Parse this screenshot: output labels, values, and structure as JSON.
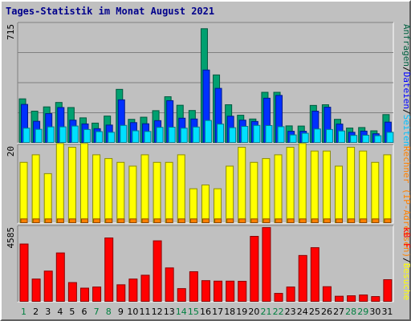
{
  "title": "Tages-Statistik im Monat August 2021",
  "chart_data": [
    {
      "type": "bar",
      "panel": "top",
      "ymax_label": "715",
      "ylim": [
        0,
        715
      ],
      "right_label_parts": [
        {
          "text": "Anfragen",
          "color": "#006040"
        },
        {
          "text": "/",
          "color": "#000000"
        },
        {
          "text": "Dateien",
          "color": "#0000ff"
        },
        {
          "text": "/",
          "color": "#000000"
        },
        {
          "text": "Seiten",
          "color": "#00c0ff"
        }
      ],
      "categories": [
        "1",
        "2",
        "3",
        "4",
        "5",
        "6",
        "7",
        "8",
        "9",
        "10",
        "11",
        "12",
        "13",
        "14",
        "15",
        "16",
        "17",
        "18",
        "19",
        "20",
        "21",
        "22",
        "23",
        "24",
        "25",
        "26",
        "27",
        "28",
        "29",
        "30",
        "31"
      ],
      "series": [
        {
          "name": "Anfragen",
          "color": "#00a070",
          "values": [
            266,
            191,
            217,
            244,
            213,
            150,
            118,
            161,
            324,
            141,
            154,
            194,
            279,
            227,
            195,
            694,
            412,
            230,
            166,
            143,
            306,
            306,
            101,
            100,
            226,
            230,
            141,
            88,
            91,
            71,
            170
          ]
        },
        {
          "name": "Dateien",
          "color": "#0030ff",
          "values": [
            232,
            129,
            176,
            213,
            136,
            113,
            84,
            106,
            260,
            121,
            114,
            133,
            255,
            148,
            143,
            442,
            330,
            160,
            136,
            128,
            270,
            287,
            68,
            68,
            191,
            215,
            112,
            62,
            69,
            53,
            124
          ]
        },
        {
          "name": "Seiten",
          "color": "#00e0ff",
          "values": [
            87,
            80,
            95,
            95,
            100,
            79,
            66,
            62,
            104,
            71,
            67,
            92,
            93,
            87,
            94,
            134,
            112,
            90,
            98,
            104,
            103,
            96,
            46,
            56,
            82,
            79,
            70,
            43,
            44,
            41,
            62
          ]
        }
      ]
    },
    {
      "type": "bar",
      "panel": "middle",
      "ymax_label": "20",
      "ylim": [
        0,
        20
      ],
      "right_label_parts": [
        {
          "text": "Rechner (IP-Adressen)",
          "color": "#ff8000"
        },
        {
          "text": "/",
          "color": "#000000"
        },
        {
          "text": "Besuche",
          "color": "#ffff00"
        }
      ],
      "categories": [
        "1",
        "2",
        "3",
        "4",
        "5",
        "6",
        "7",
        "8",
        "9",
        "10",
        "11",
        "12",
        "13",
        "14",
        "15",
        "16",
        "17",
        "18",
        "19",
        "20",
        "21",
        "22",
        "23",
        "24",
        "25",
        "26",
        "27",
        "28",
        "29",
        "30",
        "31"
      ],
      "series": [
        {
          "name": "Besuche",
          "color": "#ffff00",
          "values": [
            16,
            18,
            13,
            21,
            20,
            21,
            18,
            17,
            16,
            15,
            18,
            16,
            16,
            18,
            9,
            10,
            9,
            15,
            20,
            16,
            17,
            18,
            20,
            21,
            19,
            19,
            15,
            20,
            19,
            16,
            18
          ]
        },
        {
          "name": "Rechner",
          "color": "#ff8000",
          "values": [
            1,
            1,
            1,
            1,
            1,
            1,
            1,
            1,
            1,
            1,
            1,
            1,
            1,
            1,
            1,
            1,
            1,
            1,
            1,
            1,
            1,
            1,
            1,
            1,
            1,
            1,
            1,
            1,
            1,
            1,
            1
          ]
        }
      ]
    },
    {
      "type": "bar",
      "panel": "bottom",
      "ymax_label": "4585",
      "ylim": [
        0,
        4585
      ],
      "right_label_parts": [
        {
          "text": "kB F",
          "color": "#ff0000"
        }
      ],
      "categories": [
        "1",
        "2",
        "3",
        "4",
        "5",
        "6",
        "7",
        "8",
        "9",
        "10",
        "11",
        "12",
        "13",
        "14",
        "15",
        "16",
        "17",
        "18",
        "19",
        "20",
        "21",
        "22",
        "23",
        "24",
        "25",
        "26",
        "27",
        "28",
        "29",
        "30",
        "31"
      ],
      "series": [
        {
          "name": "kB F",
          "color": "#ff0000",
          "values": [
            3600,
            1400,
            1900,
            3040,
            1180,
            830,
            900,
            3980,
            1040,
            1400,
            1640,
            3800,
            2100,
            800,
            1860,
            1300,
            1270,
            1270,
            1260,
            4080,
            4630,
            500,
            900,
            2880,
            3370,
            920,
            320,
            350,
            400,
            300,
            1360
          ]
        }
      ]
    }
  ],
  "x_label_colors": {
    "weekday": "#000000",
    "weekend": "#008040"
  },
  "weekend_days": [
    "1",
    "7",
    "8",
    "14",
    "15",
    "21",
    "22",
    "28",
    "29"
  ]
}
